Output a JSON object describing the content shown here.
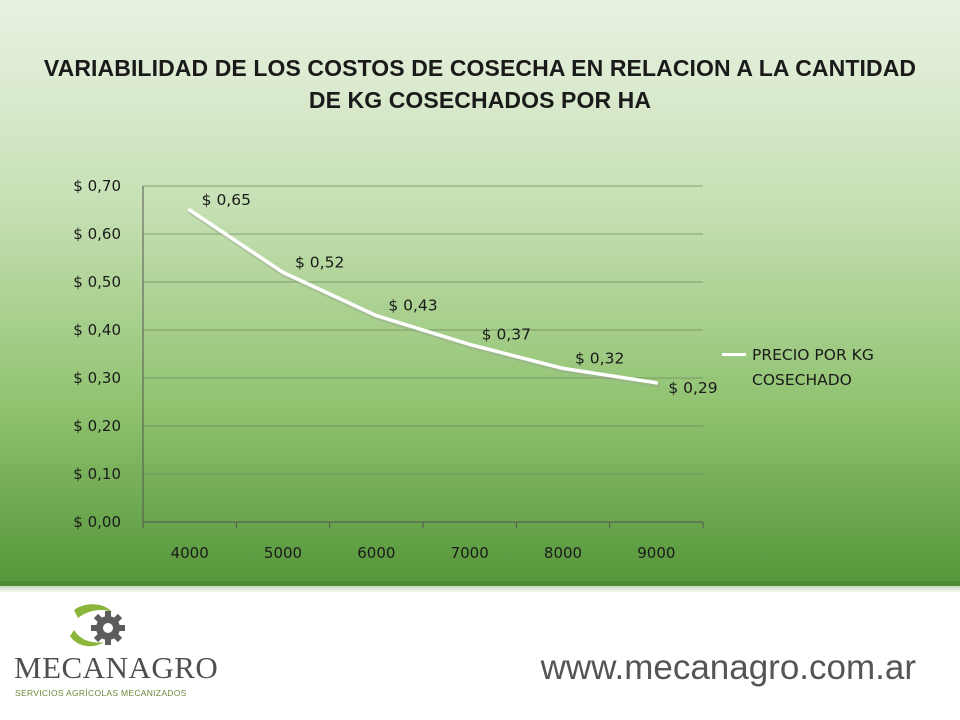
{
  "title": "VARIABILIDAD DE LOS COSTOS DE COSECHA EN RELACION A LA CANTIDAD DE KG COSECHADOS POR HA",
  "chart_data": {
    "type": "line",
    "title": "VARIABILIDAD DE LOS COSTOS DE COSECHA EN RELACION A LA CANTIDAD DE KG COSECHADOS POR HA",
    "categories": [
      "4000",
      "5000",
      "6000",
      "7000",
      "8000",
      "9000"
    ],
    "series": [
      {
        "name": "PRECIO POR KG COSECHADO",
        "values": [
          0.65,
          0.52,
          0.43,
          0.37,
          0.32,
          0.29
        ],
        "data_labels": [
          "$ 0,65",
          "$ 0,52",
          "$ 0,43",
          "$ 0,37",
          "$ 0,32",
          "$ 0,29"
        ],
        "color": "#ffffff"
      }
    ],
    "y_ticks": [
      "$ 0,00",
      "$ 0,10",
      "$ 0,20",
      "$ 0,30",
      "$ 0,40",
      "$ 0,50",
      "$ 0,60",
      "$ 0,70"
    ],
    "ylim": [
      0,
      0.7
    ],
    "grid": true,
    "legend_position": "right"
  },
  "legend": {
    "label": "PRECIO POR KG COSECHADO",
    "color": "#ffffff"
  },
  "footer": {
    "brand": "MECANAGRO",
    "brand_sub": "SERVICIOS AGRÍCOLAS MECANIZADOS",
    "url": "www.mecanagro.com.ar",
    "logo_icon": "gear-leaf-icon",
    "colors": {
      "leaf": "#8cb53c",
      "gear": "#5c5c5c"
    }
  }
}
